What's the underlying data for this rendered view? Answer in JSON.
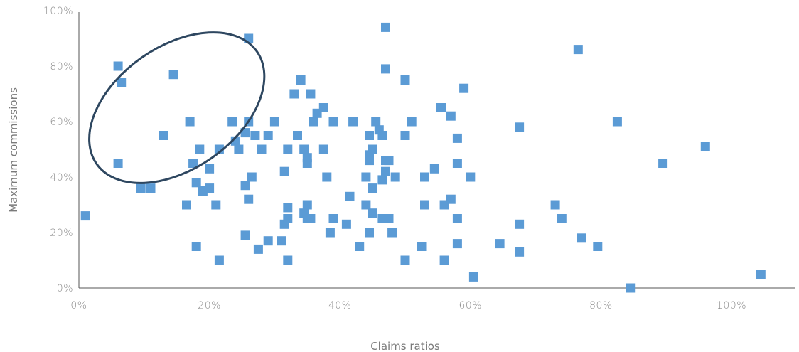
{
  "chart_data": {
    "type": "scatter",
    "xlabel": "Claims ratios",
    "ylabel": "Maximum commissions",
    "xlim": [
      0,
      110
    ],
    "ylim": [
      0,
      100
    ],
    "x_ticks": [
      "0%",
      "20%",
      "40%",
      "60%",
      "80%",
      "100%"
    ],
    "y_ticks": [
      "0%",
      "20%",
      "40%",
      "60%",
      "80%",
      "100%"
    ],
    "grid": false,
    "marker": "square",
    "colors": {
      "points": "#5b9bd5",
      "ellipse": "#2e4760",
      "axis": "#555555",
      "text": "#8a8a8a"
    },
    "highlight_ellipse": {
      "cx": 15,
      "cy": 65,
      "rx": 15,
      "ry": 24,
      "rotation_deg": -40
    },
    "points": [
      [
        1,
        26
      ],
      [
        6,
        80
      ],
      [
        6.5,
        74
      ],
      [
        6,
        45
      ],
      [
        9.5,
        36
      ],
      [
        11,
        36
      ],
      [
        13,
        55
      ],
      [
        14.5,
        77
      ],
      [
        16.5,
        30
      ],
      [
        17,
        60
      ],
      [
        17.5,
        45
      ],
      [
        18,
        38
      ],
      [
        18,
        15
      ],
      [
        18.5,
        50
      ],
      [
        19,
        35
      ],
      [
        20,
        43
      ],
      [
        20,
        36
      ],
      [
        21,
        30
      ],
      [
        21.5,
        50
      ],
      [
        21.5,
        10
      ],
      [
        23.5,
        60
      ],
      [
        24,
        53
      ],
      [
        24.5,
        50
      ],
      [
        25.5,
        56
      ],
      [
        25.5,
        37
      ],
      [
        25.5,
        19
      ],
      [
        26,
        90
      ],
      [
        26,
        60
      ],
      [
        26,
        32
      ],
      [
        26.5,
        40
      ],
      [
        27,
        55
      ],
      [
        27.5,
        14
      ],
      [
        28,
        50
      ],
      [
        29,
        17
      ],
      [
        29,
        55
      ],
      [
        30,
        60
      ],
      [
        31,
        17
      ],
      [
        31.5,
        42
      ],
      [
        31.5,
        23
      ],
      [
        32,
        50
      ],
      [
        32,
        29
      ],
      [
        32,
        25
      ],
      [
        32,
        10
      ],
      [
        33,
        70
      ],
      [
        33.5,
        55
      ],
      [
        34,
        75
      ],
      [
        34.5,
        50
      ],
      [
        34.5,
        27
      ],
      [
        35,
        30
      ],
      [
        35,
        47
      ],
      [
        35,
        45
      ],
      [
        35,
        25
      ],
      [
        35.5,
        70
      ],
      [
        35.5,
        25
      ],
      [
        36,
        60
      ],
      [
        36.5,
        63
      ],
      [
        37.5,
        65
      ],
      [
        37.5,
        50
      ],
      [
        38,
        40
      ],
      [
        38.5,
        20
      ],
      [
        39,
        60
      ],
      [
        39,
        25
      ],
      [
        41,
        23
      ],
      [
        41.5,
        33
      ],
      [
        42,
        60
      ],
      [
        43,
        15
      ],
      [
        44,
        40
      ],
      [
        44,
        30
      ],
      [
        44.5,
        55
      ],
      [
        44.5,
        48
      ],
      [
        44.5,
        46
      ],
      [
        44.5,
        20
      ],
      [
        45,
        50
      ],
      [
        45,
        36
      ],
      [
        45,
        27
      ],
      [
        45.5,
        60
      ],
      [
        46,
        57
      ],
      [
        46.5,
        55
      ],
      [
        46.5,
        39
      ],
      [
        46.5,
        25
      ],
      [
        47,
        94
      ],
      [
        47,
        79
      ],
      [
        47,
        42
      ],
      [
        47,
        46
      ],
      [
        47.5,
        25
      ],
      [
        47.5,
        46
      ],
      [
        48,
        20
      ],
      [
        48.5,
        40
      ],
      [
        50,
        75
      ],
      [
        50,
        55
      ],
      [
        50,
        10
      ],
      [
        51,
        60
      ],
      [
        52.5,
        15
      ],
      [
        53,
        40
      ],
      [
        53,
        30
      ],
      [
        54.5,
        43
      ],
      [
        55.5,
        65
      ],
      [
        56,
        10
      ],
      [
        56,
        30
      ],
      [
        57,
        32
      ],
      [
        57,
        62
      ],
      [
        58,
        45
      ],
      [
        58,
        54
      ],
      [
        58,
        25
      ],
      [
        58,
        16
      ],
      [
        59,
        72
      ],
      [
        60,
        40
      ],
      [
        60.5,
        4
      ],
      [
        64.5,
        16
      ],
      [
        67.5,
        58
      ],
      [
        67.5,
        23
      ],
      [
        67.5,
        13
      ],
      [
        73,
        30
      ],
      [
        74,
        25
      ],
      [
        76.5,
        86
      ],
      [
        77,
        18
      ],
      [
        79.5,
        15
      ],
      [
        82.5,
        60
      ],
      [
        84.5,
        0
      ],
      [
        89.5,
        45
      ],
      [
        96,
        51
      ],
      [
        104.5,
        5
      ]
    ]
  }
}
